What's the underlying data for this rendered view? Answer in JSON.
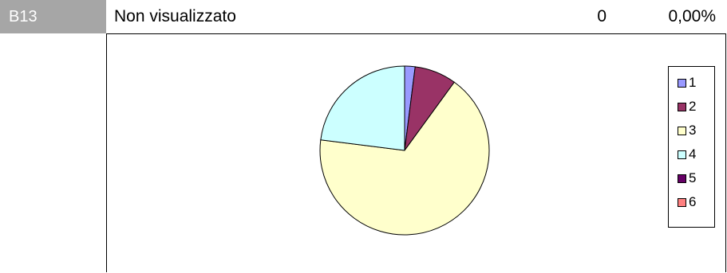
{
  "row": {
    "code": "B13",
    "label": "Non visualizzato",
    "count": "0",
    "percent": "0,00%"
  },
  "chart_data": {
    "type": "pie",
    "categories": [
      "1",
      "2",
      "3",
      "4",
      "5",
      "6"
    ],
    "values": [
      2,
      8,
      67,
      23,
      0,
      0
    ],
    "colors": [
      "#9999ff",
      "#993366",
      "#ffffcc",
      "#ccffff",
      "#660066",
      "#ff8080"
    ],
    "legend_position": "right"
  }
}
